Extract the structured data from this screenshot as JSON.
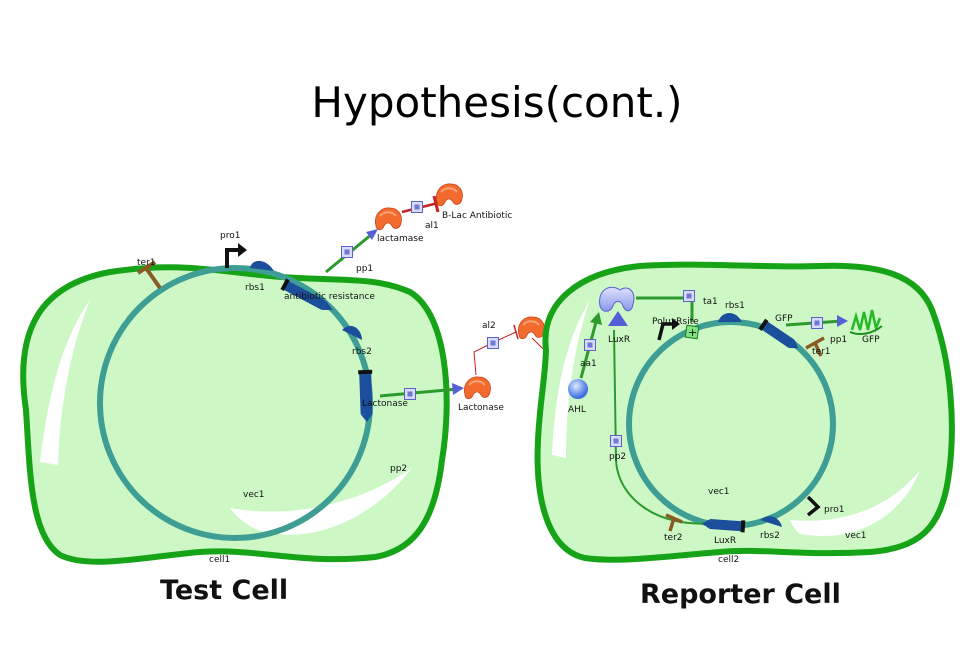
{
  "slide": {
    "title": "Hypothesis(cont.)"
  },
  "test_cell": {
    "caption": "Test Cell",
    "labels": {
      "cell": "cell1",
      "vector": "vec1",
      "terminator": "ter1",
      "promoter": "pro1",
      "rbs1": "rbs1",
      "gene1": "antibiotic resistance",
      "rbs2": "rbs2",
      "gene2": "Lactonase",
      "pp1": "pp1",
      "pp2": "pp2",
      "product1": "lactamase",
      "antibiotic": "B-Lac Antibiotic",
      "al1": "al1",
      "product2": "Lactonase",
      "al2": "al2"
    }
  },
  "reporter_cell": {
    "caption": "Reporter Cell",
    "labels": {
      "cell": "cell2",
      "vector": "vec1",
      "ahl": "AHL",
      "aa1": "aa1",
      "luxr": "LuxR",
      "ta1": "ta1",
      "promoter_lux": "PoluxRsite",
      "rbs1": "rbs1",
      "gfp_gene": "GFP",
      "ter1": "ter1",
      "pp1": "pp1",
      "gfp_protein": "GFP",
      "pp2": "pp2",
      "ter2": "ter2",
      "luxr_gene": "LuxR",
      "rbs2": "rbs2",
      "pro1": "pro1",
      "vec1_outer": "vec1"
    }
  },
  "colors": {
    "cytoplasm": "#cdf8c6",
    "membrane": "#17a317",
    "plasmid": "#3f9e94",
    "gene": "#1b4f9c",
    "enzyme": "#f26a2d",
    "flow": "#2d9a2d",
    "inhibit": "#cc2222",
    "gfp": "#3fcf3f"
  }
}
